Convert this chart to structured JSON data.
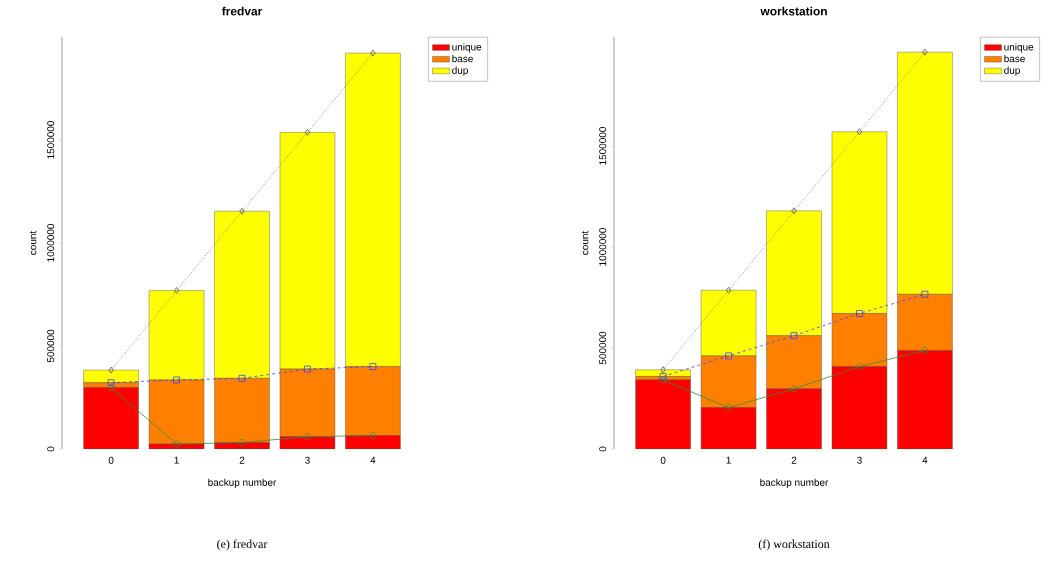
{
  "chart_data": [
    {
      "type": "bar",
      "title": "fredvar",
      "xlabel": "backup number",
      "ylabel": "count",
      "categories": [
        "0",
        "1",
        "2",
        "3",
        "4"
      ],
      "stacked": true,
      "legend": "top right",
      "series": [
        {
          "name": "unique",
          "color": "#ff0000",
          "values": [
            298000,
            24000,
            31000,
            60000,
            65000
          ]
        },
        {
          "name": "base",
          "color": "#ff7f00",
          "values": [
            24000,
            311000,
            312000,
            328000,
            335000
          ]
        },
        {
          "name": "dup",
          "color": "#ffff00",
          "values": [
            61000,
            434000,
            811000,
            1149000,
            1522000
          ]
        },
        {
          "type": "line",
          "color": "#3a8a3a",
          "marker": "circle",
          "line_style": "solid",
          "values": [
            298000,
            24000,
            31000,
            60000,
            65000
          ]
        },
        {
          "type": "line",
          "color": "#4040ff",
          "marker": "square",
          "line_style": "dashed",
          "values": [
            322000,
            335000,
            343000,
            388000,
            400000
          ]
        },
        {
          "type": "line",
          "color": "#505050",
          "marker": "diamond",
          "line_style": "dotted",
          "values": [
            383000,
            769000,
            1154000,
            1537000,
            1922000
          ]
        }
      ],
      "ylim": [
        0,
        2000000
      ],
      "yticks": [
        0,
        500000,
        1000000,
        1500000
      ],
      "annotations": [
        "(e) fredvar"
      ]
    },
    {
      "type": "bar",
      "title": "workstation",
      "xlabel": "backup number",
      "ylabel": "count",
      "categories": [
        "0",
        "1",
        "2",
        "3",
        "4"
      ],
      "stacked": true,
      "legend": "top right",
      "series": [
        {
          "name": "unique",
          "color": "#ff0000",
          "values": [
            342000,
            205000,
            298000,
            408000,
            488000
          ]
        },
        {
          "name": "base",
          "color": "#ff7f00",
          "values": [
            17000,
            256000,
            263000,
            263000,
            278000
          ]
        },
        {
          "name": "dup",
          "color": "#ffff00",
          "values": [
            33000,
            325000,
            618000,
            900000,
            1199000
          ]
        },
        {
          "type": "line",
          "color": "#3a8a3a",
          "marker": "circle",
          "line_style": "solid",
          "values": [
            342000,
            205000,
            298000,
            408000,
            488000
          ]
        },
        {
          "type": "line",
          "color": "#4040ff",
          "marker": "square",
          "line_style": "dashed",
          "values": [
            359000,
            461000,
            561000,
            671000,
            766000
          ]
        },
        {
          "type": "line",
          "color": "#505050",
          "marker": "diamond",
          "line_style": "dotted",
          "values": [
            392000,
            786000,
            1179000,
            1571000,
            1965000
          ]
        }
      ],
      "ylim": [
        0,
        2040000
      ],
      "yticks": [
        0,
        500000,
        1000000,
        1500000
      ],
      "annotations": [
        "(f) workstation"
      ]
    }
  ]
}
